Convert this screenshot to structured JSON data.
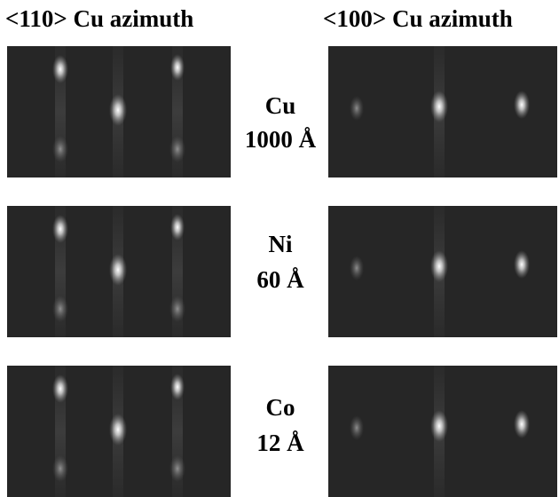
{
  "columns": [
    "<110> Cu azimuth",
    "<100> Cu azimuth"
  ],
  "rows": [
    {
      "element": "Cu",
      "thickness": "1000 Å"
    },
    {
      "element": "Ni",
      "thickness": "60 Å"
    },
    {
      "element": "Co",
      "thickness": "12 Å"
    }
  ]
}
